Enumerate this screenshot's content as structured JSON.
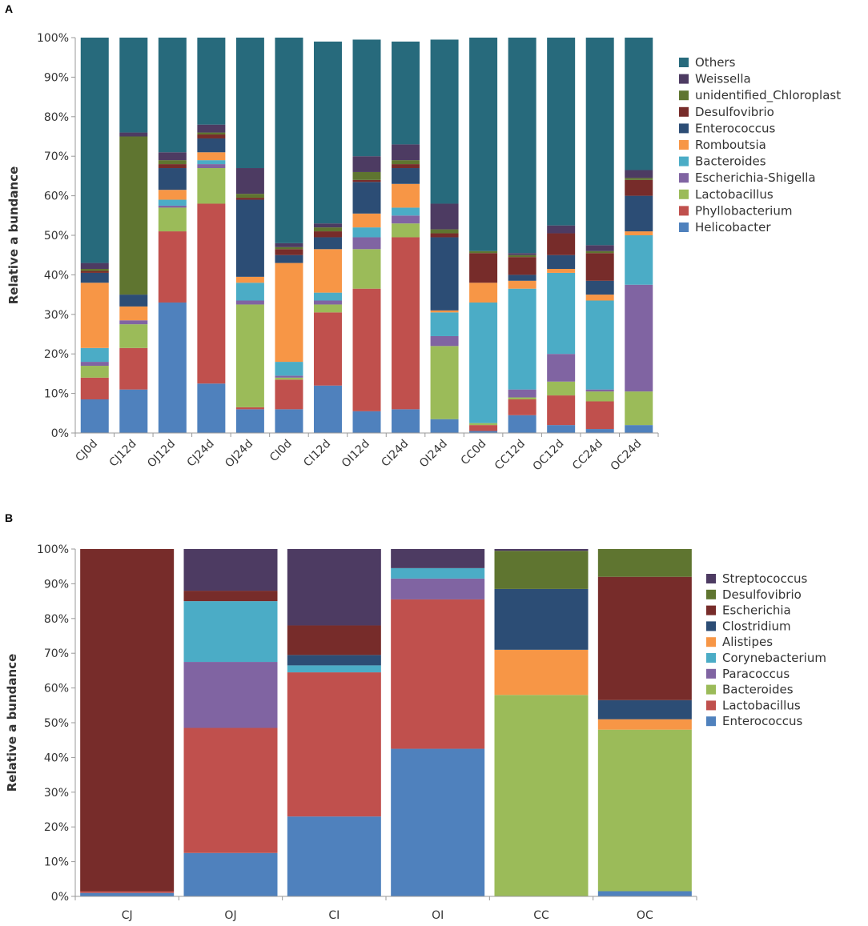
{
  "chart_data": [
    {
      "panel": "A",
      "type": "bar",
      "stacked": true,
      "normalized": true,
      "ylabel": "Relative a bundance",
      "yticks": [
        "0%",
        "10%",
        "20%",
        "30%",
        "40%",
        "50%",
        "60%",
        "70%",
        "80%",
        "90%",
        "100%"
      ],
      "ylim": [
        0,
        100
      ],
      "legend_position": "right",
      "categories": [
        "CJ0d",
        "CJ12d",
        "OJ12d",
        "CJ24d",
        "OJ24d",
        "CI0d",
        "CI12d",
        "OI12d",
        "CI24d",
        "OI24d",
        "CC0d",
        "CC12d",
        "OC12d",
        "CC24d",
        "OC24d"
      ],
      "series": [
        {
          "name": "Helicobacter",
          "color": "#4f81bd",
          "values": [
            8.5,
            11,
            33,
            12.5,
            6,
            6,
            12,
            5.5,
            6,
            3.5,
            0.5,
            4.5,
            2,
            1,
            2
          ]
        },
        {
          "name": "Phyllobacterium",
          "color": "#c0504d",
          "values": [
            5.5,
            10.5,
            18,
            45.5,
            0.5,
            7.5,
            18.5,
            31,
            43.5,
            0,
            1.5,
            4,
            7.5,
            7,
            0
          ]
        },
        {
          "name": "Lactobacillus",
          "color": "#9bbb59",
          "values": [
            3,
            6,
            6,
            9,
            26,
            0.5,
            2,
            10,
            3.5,
            18.5,
            0.5,
            0.5,
            3.5,
            2.5,
            8.5
          ]
        },
        {
          "name": "Escherichia-Shigella",
          "color": "#8064a2",
          "values": [
            1,
            1,
            0.5,
            1,
            1,
            0.5,
            1,
            3,
            2,
            2.5,
            0,
            2,
            7,
            0.5,
            27
          ]
        },
        {
          "name": "Bacteroides",
          "color": "#4bacc6",
          "values": [
            3.5,
            0,
            1.5,
            1,
            4.5,
            3.5,
            2,
            2.5,
            2,
            6,
            30.5,
            25.5,
            20.5,
            22.5,
            12.5
          ]
        },
        {
          "name": "Romboutsia",
          "color": "#f79646",
          "values": [
            16.5,
            3.5,
            2.5,
            2,
            1.5,
            25,
            11,
            3.5,
            6,
            0.5,
            5,
            2,
            1,
            1.5,
            1
          ]
        },
        {
          "name": "Enterococcus",
          "color": "#2c4d75",
          "values": [
            2.5,
            3,
            5.5,
            3.5,
            19.5,
            2,
            3,
            8,
            4,
            18.5,
            0,
            1.5,
            3.5,
            3.5,
            9
          ]
        },
        {
          "name": "Desulfovibrio",
          "color": "#772c2a",
          "values": [
            0.5,
            0,
            1,
            1,
            0.5,
            1.5,
            1.5,
            0.5,
            1,
            1,
            7.5,
            4.5,
            5.5,
            7,
            4
          ]
        },
        {
          "name": "unidentified_Chloroplast",
          "color": "#5f7530",
          "values": [
            0.5,
            40,
            1,
            0.5,
            1,
            0.5,
            1,
            2,
            1,
            1,
            0.5,
            0.5,
            0,
            0.5,
            0.5
          ]
        },
        {
          "name": "Weissella",
          "color": "#4d3b62",
          "values": [
            1.5,
            1,
            2,
            2,
            6.5,
            1,
            1,
            4,
            4,
            6.5,
            0,
            0.5,
            2,
            1.5,
            2
          ]
        },
        {
          "name": "Others",
          "color": "#276a7c",
          "values": [
            57,
            24,
            29,
            22,
            33,
            52,
            46,
            29.5,
            26,
            41.5,
            54,
            54.5,
            47.5,
            52.5,
            33.5
          ]
        }
      ]
    },
    {
      "panel": "B",
      "type": "bar",
      "stacked": true,
      "normalized": true,
      "ylabel": "Relative a bundance",
      "yticks": [
        "0%",
        "10%",
        "20%",
        "30%",
        "40%",
        "50%",
        "60%",
        "70%",
        "80%",
        "90%",
        "100%"
      ],
      "ylim": [
        0,
        100
      ],
      "legend_position": "right",
      "categories": [
        "CJ",
        "OJ",
        "CI",
        "OI",
        "CC",
        "OC"
      ],
      "series": [
        {
          "name": "Enterococcus",
          "color": "#4f81bd",
          "values": [
            1,
            12.5,
            23,
            42.5,
            0,
            1.5
          ]
        },
        {
          "name": "Lactobacillus",
          "color": "#c0504d",
          "values": [
            0.5,
            36,
            41.5,
            43,
            0,
            0
          ]
        },
        {
          "name": "Bacteroides",
          "color": "#9bbb59",
          "values": [
            0,
            0,
            0,
            0,
            58,
            46.5
          ]
        },
        {
          "name": "Paracoccus",
          "color": "#8064a2",
          "values": [
            0,
            19,
            0,
            6,
            0,
            0
          ]
        },
        {
          "name": "Corynebacterium",
          "color": "#4bacc6",
          "values": [
            0,
            17.5,
            2,
            3,
            0,
            0
          ]
        },
        {
          "name": "Alistipes",
          "color": "#f79646",
          "values": [
            0,
            0,
            0,
            0,
            13,
            3
          ]
        },
        {
          "name": "Clostridium",
          "color": "#2c4d75",
          "values": [
            0,
            0,
            3,
            0,
            17.5,
            5.5
          ]
        },
        {
          "name": "Escherichia",
          "color": "#772c2a",
          "values": [
            98.5,
            3,
            8.5,
            0,
            0,
            35.5
          ]
        },
        {
          "name": "Desulfovibrio",
          "color": "#5f7530",
          "values": [
            0,
            0,
            0,
            0,
            11,
            8
          ]
        },
        {
          "name": "Streptococcus",
          "color": "#4d3b62",
          "values": [
            0,
            12,
            22,
            5.5,
            0.5,
            0
          ]
        }
      ]
    }
  ]
}
